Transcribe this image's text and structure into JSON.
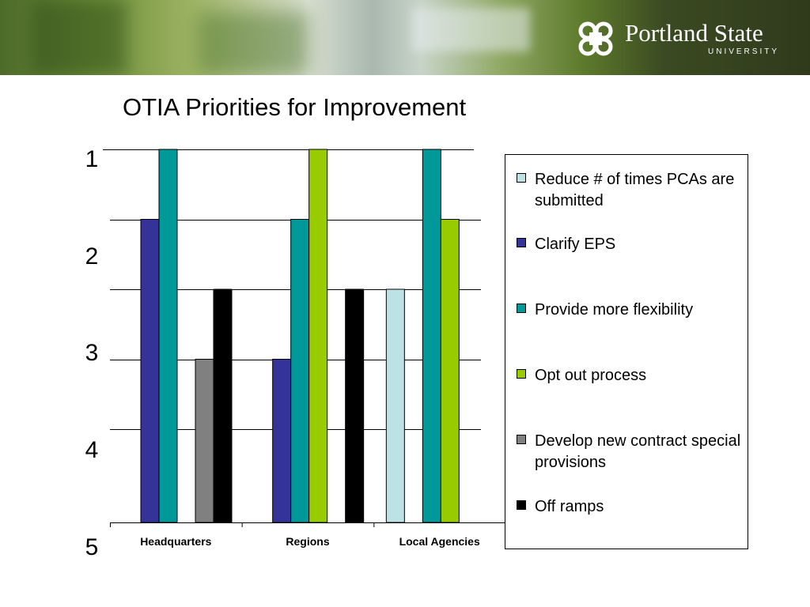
{
  "branding": {
    "name": "Portland State",
    "subtitle": "UNIVERSITY"
  },
  "chart_data": {
    "type": "bar",
    "title": "OTIA Priorities for Improvement",
    "xlabel": "",
    "ylabel": "",
    "categories": [
      "Headquarters",
      "Regions",
      "Local Agencies"
    ],
    "y_tick_labels": [
      "1",
      "2",
      "3",
      "4",
      "5"
    ],
    "ylim": [
      5,
      1
    ],
    "y_inverted": true,
    "grid": true,
    "legend_position": "right",
    "series": [
      {
        "name": "Reduce # of times PCAs are submitted",
        "color": "#bde2e6",
        "values": [
          null,
          null,
          2.5
        ]
      },
      {
        "name": "Clarify EPS",
        "color": "#333399",
        "values": [
          1.75,
          3.25,
          null
        ]
      },
      {
        "name": "Provide more flexibility",
        "color": "#009999",
        "values": [
          1,
          1.75,
          1
        ]
      },
      {
        "name": "Opt out process",
        "color": "#99cc00",
        "values": [
          null,
          1,
          1.75
        ]
      },
      {
        "name": "Develop new contract special provisions",
        "color": "#808080",
        "values": [
          3.25,
          null,
          null
        ]
      },
      {
        "name": "Off ramps",
        "color": "#000000",
        "values": [
          2.5,
          2.5,
          null
        ]
      }
    ]
  }
}
